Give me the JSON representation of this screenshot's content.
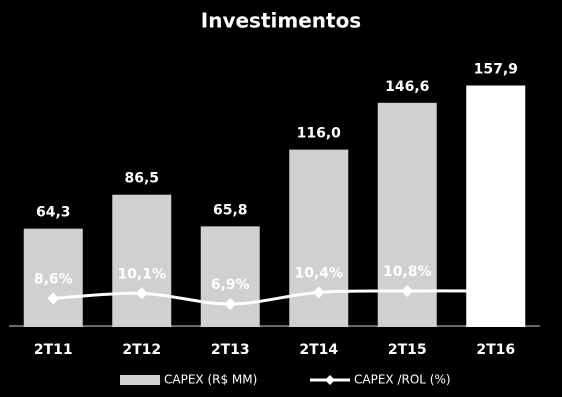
{
  "chart_data": {
    "type": "bar",
    "title": "Investimentos",
    "categories": [
      "2T11",
      "2T12",
      "2T13",
      "2T14",
      "2T15",
      "2T16"
    ],
    "ylim": [
      0,
      170
    ],
    "y2lim": [
      0,
      78
    ],
    "series": [
      {
        "name": "CAPEX (R$ MM)",
        "type": "bar",
        "color": "#d0d0d0",
        "colors": [
          "#d0d0d0",
          "#d0d0d0",
          "#d0d0d0",
          "#d0d0d0",
          "#d0d0d0",
          "#ffffff"
        ],
        "values": [
          64.3,
          86.5,
          65.8,
          116.0,
          146.6,
          157.9
        ],
        "value_labels": [
          "64,3",
          "86,5",
          "65,8",
          "116,0",
          "146,6",
          "157,9"
        ]
      },
      {
        "name": "CAPEX /ROL (%)",
        "type": "line",
        "axis": "y2",
        "color": "#ffffff",
        "values": [
          8.6,
          10.1,
          6.9,
          10.4,
          10.8,
          10.8
        ],
        "value_labels": [
          "8,6%",
          "10,1%",
          "6,9%",
          "10,4%",
          "10,8%",
          null
        ]
      }
    ]
  }
}
